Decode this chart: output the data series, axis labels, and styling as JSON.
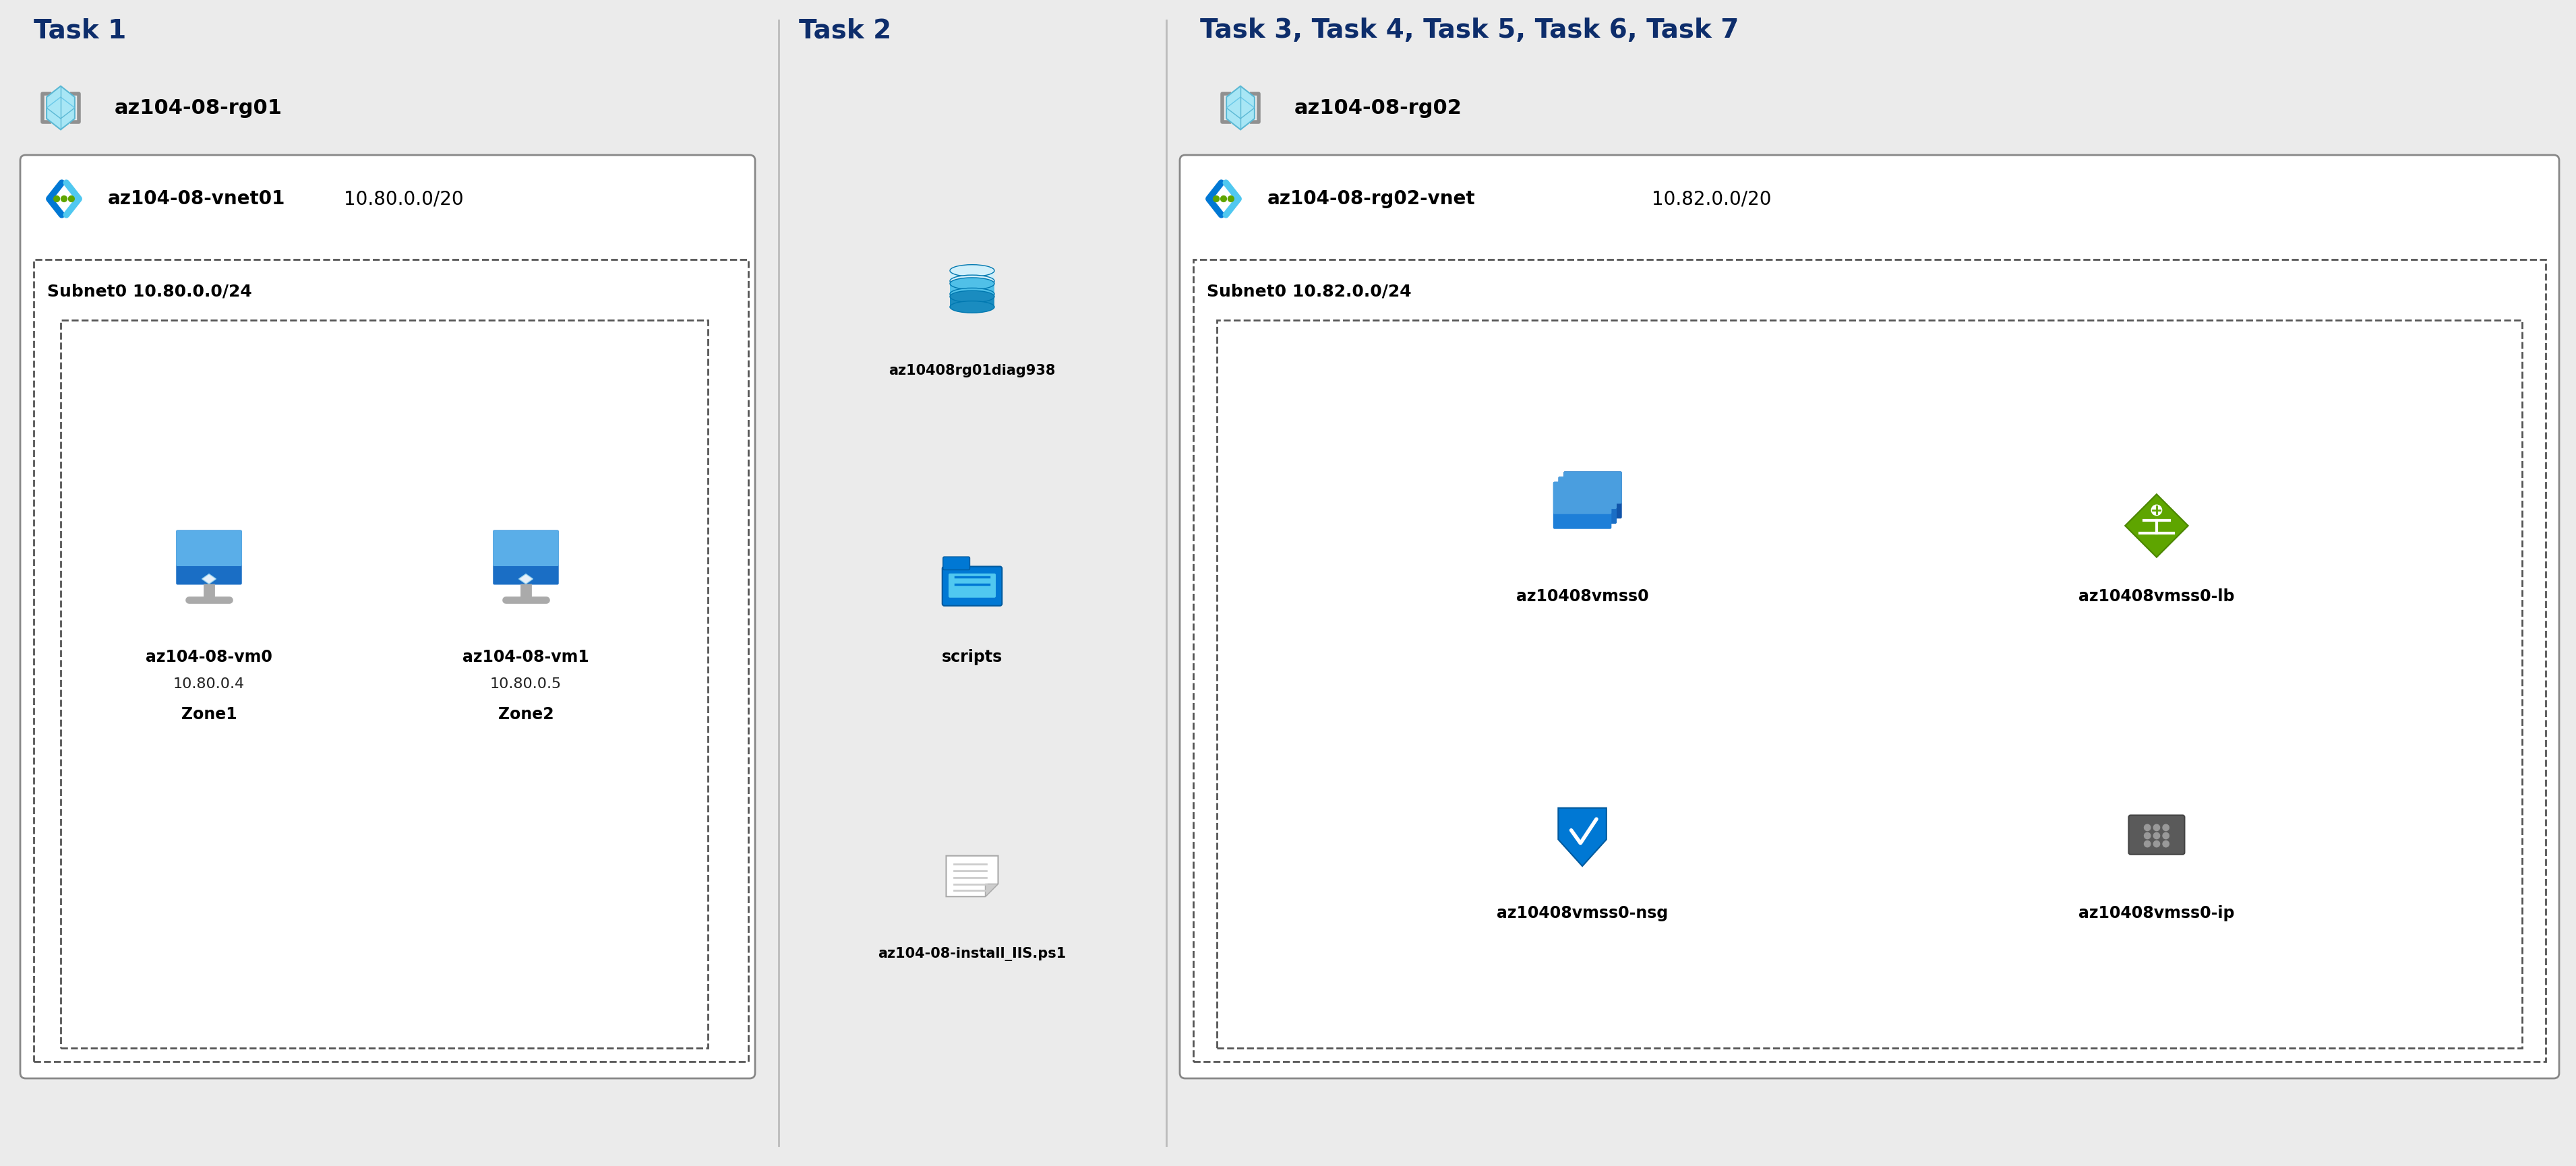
{
  "bg_color": "#ebebeb",
  "white_bg": "#ffffff",
  "task1_title": "Task 1",
  "task2_title": "Task 2",
  "task3_title": "Task 3, Task 4, Task 5, Task 6, Task 7",
  "rg01_label": "az104-08-rg01",
  "rg02_label": "az104-08-rg02",
  "vnet01_label": "az104-08-vnet01",
  "vnet01_cidr": "10.80.0.0/20",
  "vnet02_label": "az104-08-rg02-vnet",
  "vnet02_cidr": "10.82.0.0/20",
  "subnet0_label": "Subnet0",
  "subnet0_cidr": "10.80.0.0/24",
  "subnet0b_label": "Subnet0",
  "subnet0b_cidr": "10.82.0.0/24",
  "vm0_label": "az104-08-vm0",
  "vm0_ip": "10.80.0.4",
  "vm0_zone": "Zone1",
  "vm1_label": "az104-08-vm1",
  "vm1_ip": "10.80.0.5",
  "vm1_zone": "Zone2",
  "diag_label": "az10408rg01diag938",
  "scripts_label": "scripts",
  "ps1_label": "az104-08-install_IIS.ps1",
  "vmss0_label": "az10408vmss0",
  "vmss0_lb_label": "az10408vmss0-lb",
  "vmss0_nsg_label": "az10408vmss0-nsg",
  "vmss0_ip_label": "az10408vmss0-ip",
  "task_title_color": "#0d2d6b",
  "divider_color": "#bbbbbb",
  "box_edge_color": "#888888",
  "dashed_edge_color": "#555555"
}
